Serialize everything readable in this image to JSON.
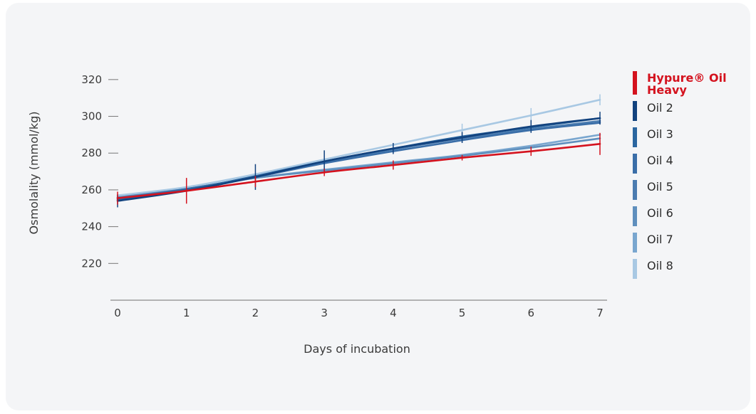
{
  "chart_data": {
    "type": "line",
    "xlabel": "Days of incubation",
    "ylabel": "Osmolality (mmol/kg)",
    "x": [
      0,
      1,
      2,
      3,
      4,
      5,
      6,
      7
    ],
    "xlim": [
      0,
      7
    ],
    "ylim": [
      200,
      330
    ],
    "yticks": [
      220,
      240,
      260,
      280,
      300,
      320
    ],
    "grid": false,
    "legend_position": "right",
    "series": [
      {
        "name": "Oil 8",
        "color": "#a8c8e3",
        "values": [
          257,
          261.5,
          268.5,
          276.5,
          284.5,
          292.5,
          300.5,
          309
        ],
        "error": [
          0,
          0,
          0,
          0,
          0,
          3.5,
          4,
          3
        ]
      },
      {
        "name": "Oil 7",
        "color": "#79a6cf",
        "values": [
          256,
          260.5,
          266.5,
          271,
          275,
          279,
          284,
          290
        ],
        "error": [
          0,
          0,
          0,
          0,
          0,
          0,
          0,
          0
        ]
      },
      {
        "name": "Oil 6",
        "color": "#5f8fbd",
        "values": [
          256,
          260.5,
          266.5,
          270.5,
          274.5,
          278.5,
          283,
          288
        ],
        "error": [
          0,
          0,
          0,
          0,
          0,
          0,
          0,
          0
        ]
      },
      {
        "name": "Oil 5",
        "color": "#4b7cb0",
        "values": [
          255.5,
          260.5,
          267,
          275,
          282,
          288,
          293,
          297.5
        ],
        "error": [
          0,
          0,
          0,
          0,
          0,
          0,
          0,
          0
        ]
      },
      {
        "name": "Oil 4",
        "color": "#3a6ea8",
        "values": [
          255,
          260.5,
          267,
          274.5,
          281,
          287,
          292.5,
          296.5
        ],
        "error": [
          0,
          0,
          0,
          0,
          0,
          0,
          0,
          0
        ]
      },
      {
        "name": "Oil 3",
        "color": "#2a66a0",
        "values": [
          254.5,
          260,
          267.5,
          275.5,
          282.5,
          289,
          294,
          299
        ],
        "error": [
          0,
          0,
          0,
          0,
          0,
          0,
          0,
          0
        ]
      },
      {
        "name": "Oil 2",
        "color": "#12427e",
        "values": [
          254,
          259.5,
          267,
          275.5,
          282.5,
          288.5,
          294.5,
          299
        ],
        "error": [
          3.5,
          0,
          7,
          6,
          3,
          3,
          3.5,
          3.5
        ]
      },
      {
        "name": "Hypure® Oil Heavy",
        "color": "#d4121e",
        "values": [
          255.5,
          259.5,
          264.5,
          269.5,
          273.5,
          277.5,
          281,
          285
        ],
        "error": [
          3.5,
          7,
          3,
          2,
          2.5,
          1.5,
          2.5,
          6
        ]
      }
    ],
    "legend": [
      {
        "label_lines": [
          "Hypure® Oil",
          "Heavy"
        ],
        "color": "#d4121e",
        "highlight": true
      },
      {
        "label_lines": [
          "Oil 2"
        ],
        "color": "#12427e",
        "highlight": false
      },
      {
        "label_lines": [
          "Oil 3"
        ],
        "color": "#2a66a0",
        "highlight": false
      },
      {
        "label_lines": [
          "Oil 4"
        ],
        "color": "#3a6ea8",
        "highlight": false
      },
      {
        "label_lines": [
          "Oil 5"
        ],
        "color": "#4b7cb0",
        "highlight": false
      },
      {
        "label_lines": [
          "Oil 6"
        ],
        "color": "#5f8fbd",
        "highlight": false
      },
      {
        "label_lines": [
          "Oil 7"
        ],
        "color": "#79a6cf",
        "highlight": false
      },
      {
        "label_lines": [
          "Oil 8"
        ],
        "color": "#a8c8e3",
        "highlight": false
      }
    ]
  }
}
